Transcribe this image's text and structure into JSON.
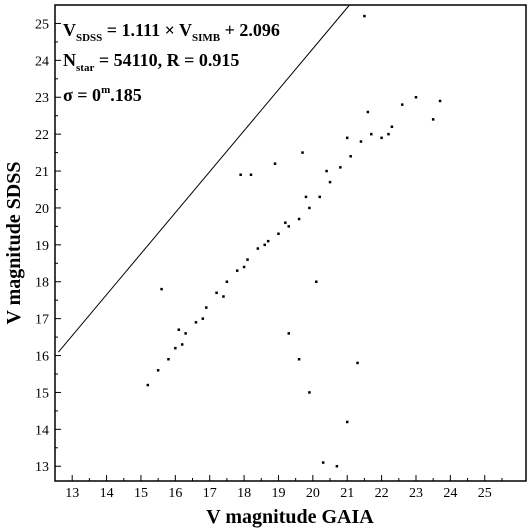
{
  "chart_data": {
    "type": "scatter",
    "title": "",
    "xlabel": "V magnitude GAIA",
    "ylabel": "V magnitude SDSS",
    "xlim": [
      12.5,
      26.2
    ],
    "ylim": [
      12.6,
      25.5
    ],
    "xticks": [
      "13",
      "14",
      "15",
      "16",
      "17",
      "18",
      "19",
      "20",
      "21",
      "22",
      "23",
      "24",
      "25"
    ],
    "yticks": [
      "13",
      "14",
      "15",
      "16",
      "17",
      "18",
      "19",
      "20",
      "21",
      "22",
      "23",
      "24",
      "25"
    ],
    "grid": false,
    "legend": "none",
    "marker_color": "#000000",
    "fit_line": {
      "slope": 1.111,
      "intercept": 2.096,
      "x_range": [
        12.6,
        25.3
      ]
    },
    "annotations": {
      "line1": {
        "v1": "V",
        "sub1": "SDSS",
        "mid": " = 1.111 × V",
        "sub2": "SIMB",
        "end": " + 2.096"
      },
      "line2": {
        "n": "N",
        "sub": "star",
        "end": " = 54110, R = 0.915"
      },
      "line3": {
        "sigma": "σ = 0",
        "sup": "m",
        "end": ".185"
      }
    },
    "series": [
      {
        "x": [
          15.2,
          15.5,
          15.8,
          16.0,
          16.3,
          16.6,
          16.9,
          17.2,
          17.5,
          17.8,
          18.1,
          18.4,
          18.7,
          19.0,
          19.3,
          19.6,
          19.9,
          20.2,
          20.5,
          20.8,
          21.1,
          21.4,
          21.7,
          22.0,
          22.3,
          15.6,
          16.2,
          16.8,
          17.4,
          18.0,
          18.6,
          19.2,
          19.8,
          20.4,
          21.0,
          21.6,
          22.2,
          17.9,
          18.2,
          18.9,
          19.3,
          19.6,
          19.9,
          20.3,
          20.7,
          21.0,
          21.3,
          20.1,
          19.7,
          21.5,
          22.6,
          23.0,
          23.5,
          23.7,
          16.1
        ],
        "y": [
          15.2,
          15.6,
          15.9,
          16.2,
          16.6,
          16.9,
          17.3,
          17.7,
          18.0,
          18.3,
          18.6,
          18.9,
          19.1,
          19.3,
          19.5,
          19.7,
          20.0,
          20.3,
          20.7,
          21.1,
          21.4,
          21.8,
          22.0,
          21.9,
          22.2,
          17.8,
          16.3,
          17.0,
          17.6,
          18.4,
          19.0,
          19.6,
          20.3,
          21.0,
          21.9,
          22.6,
          22.0,
          20.9,
          20.9,
          21.2,
          16.6,
          15.9,
          15.0,
          13.1,
          13.0,
          14.2,
          15.8,
          18.0,
          21.5,
          25.2,
          22.8,
          23.0,
          22.4,
          22.9,
          16.7
        ]
      }
    ]
  }
}
